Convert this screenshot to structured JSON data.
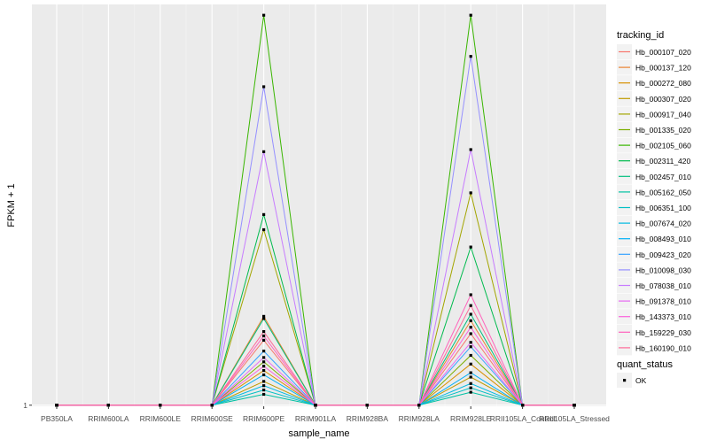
{
  "chart_data": {
    "type": "line",
    "xlabel": "sample_name",
    "ylabel": "FPKM + 1",
    "y_ticks": [
      "1"
    ],
    "categories": [
      "PB350LA",
      "RRIM600LA",
      "RRIM600LE",
      "RRIM600SE",
      "RRIM600PE",
      "RRIM901LA",
      "RRIM928BA",
      "RRIM928LA",
      "RRIM928LE",
      "RRII105LA_Control",
      "RRII105LA_Stressed"
    ],
    "x_tick_labels": [
      "PB350LA",
      "RRIM600LA",
      "RRIM600LE",
      "RRIM600SE",
      "RRIM600PE",
      "RRIM901LA",
      "RRIM928BA",
      "RRIM928LA",
      "RRIM928LE",
      "RRII105LA_Control",
      "RRII105LA_Stressed"
    ],
    "ylim": [
      0.95,
      19.5
    ],
    "grid": true,
    "legend_position": "right",
    "legend": {
      "title": "tracking_id",
      "items": [
        {
          "name": "Hb_000107_020",
          "color": "#F8766D"
        },
        {
          "name": "Hb_000137_120",
          "color": "#EA8331"
        },
        {
          "name": "Hb_000272_080",
          "color": "#D89000"
        },
        {
          "name": "Hb_000307_020",
          "color": "#C09B00"
        },
        {
          "name": "Hb_000917_040",
          "color": "#A3A500"
        },
        {
          "name": "Hb_001335_020",
          "color": "#7CAE00"
        },
        {
          "name": "Hb_002105_060",
          "color": "#39B600"
        },
        {
          "name": "Hb_002311_420",
          "color": "#00BB4E"
        },
        {
          "name": "Hb_002457_010",
          "color": "#00BF7D"
        },
        {
          "name": "Hb_005162_050",
          "color": "#00C1A3"
        },
        {
          "name": "Hb_006351_100",
          "color": "#00BFC4"
        },
        {
          "name": "Hb_007674_020",
          "color": "#00BAE0"
        },
        {
          "name": "Hb_008493_010",
          "color": "#00B0F6"
        },
        {
          "name": "Hb_009423_020",
          "color": "#35A2FF"
        },
        {
          "name": "Hb_010098_030",
          "color": "#9590FF"
        },
        {
          "name": "Hb_078038_010",
          "color": "#C77CFF"
        },
        {
          "name": "Hb_091378_010",
          "color": "#E76BF3"
        },
        {
          "name": "Hb_143373_010",
          "color": "#FA62DB"
        },
        {
          "name": "Hb_159229_030",
          "color": "#FF62BC"
        },
        {
          "name": "Hb_160190_010",
          "color": "#FF6A98"
        }
      ]
    },
    "shape_legend": {
      "title": "quant_status",
      "items": [
        "OK"
      ]
    },
    "series": [
      {
        "name": "Hb_000107_020",
        "values": [
          1,
          1,
          1,
          1,
          4.0,
          1,
          1,
          1,
          4.3,
          1,
          1
        ]
      },
      {
        "name": "Hb_000137_120",
        "values": [
          1,
          1,
          1,
          1,
          5.1,
          1,
          1,
          1,
          4.9,
          1,
          1
        ]
      },
      {
        "name": "Hb_000272_080",
        "values": [
          1,
          1,
          1,
          1,
          2.6,
          1,
          1,
          1,
          2.9,
          1,
          1
        ]
      },
      {
        "name": "Hb_000307_020",
        "values": [
          1,
          1,
          1,
          1,
          2.1,
          1,
          1,
          1,
          2.3,
          1,
          1
        ]
      },
      {
        "name": "Hb_000917_040",
        "values": [
          1,
          1,
          1,
          1,
          9.1,
          1,
          1,
          1,
          10.8,
          1,
          1
        ]
      },
      {
        "name": "Hb_001335_020",
        "values": [
          1,
          1,
          1,
          1,
          3.0,
          1,
          1,
          1,
          3.3,
          1,
          1
        ]
      },
      {
        "name": "Hb_002105_060",
        "values": [
          1,
          1,
          1,
          1,
          19.0,
          1,
          1,
          1,
          19.0,
          1,
          1
        ]
      },
      {
        "name": "Hb_002311_420",
        "values": [
          1,
          1,
          1,
          1,
          9.8,
          1,
          1,
          1,
          8.3,
          1,
          1
        ]
      },
      {
        "name": "Hb_002457_010",
        "values": [
          1,
          1,
          1,
          1,
          5.0,
          1,
          1,
          1,
          5.2,
          1,
          1
        ]
      },
      {
        "name": "Hb_005162_050",
        "values": [
          1,
          1,
          1,
          1,
          1.5,
          1,
          1,
          1,
          1.6,
          1,
          1
        ]
      },
      {
        "name": "Hb_006351_100",
        "values": [
          1,
          1,
          1,
          1,
          1.7,
          1,
          1,
          1,
          1.8,
          1,
          1
        ]
      },
      {
        "name": "Hb_007674_020",
        "values": [
          1,
          1,
          1,
          1,
          1.9,
          1,
          1,
          1,
          2.0,
          1,
          1
        ]
      },
      {
        "name": "Hb_008493_010",
        "values": [
          1,
          1,
          1,
          1,
          2.4,
          1,
          1,
          1,
          2.5,
          1,
          1
        ]
      },
      {
        "name": "Hb_009423_020",
        "values": [
          1,
          1,
          1,
          1,
          3.5,
          1,
          1,
          1,
          3.7,
          1,
          1
        ]
      },
      {
        "name": "Hb_010098_030",
        "values": [
          1,
          1,
          1,
          1,
          15.7,
          1,
          1,
          1,
          17.1,
          1,
          1
        ]
      },
      {
        "name": "Hb_078038_010",
        "values": [
          1,
          1,
          1,
          1,
          12.7,
          1,
          1,
          1,
          12.8,
          1,
          1
        ]
      },
      {
        "name": "Hb_091378_010",
        "values": [
          1,
          1,
          1,
          1,
          3.2,
          1,
          1,
          1,
          3.9,
          1,
          1
        ]
      },
      {
        "name": "Hb_143373_010",
        "values": [
          1,
          1,
          1,
          1,
          2.8,
          1,
          1,
          1,
          4.6,
          1,
          1
        ]
      },
      {
        "name": "Hb_159229_030",
        "values": [
          1,
          1,
          1,
          1,
          4.2,
          1,
          1,
          1,
          6.1,
          1,
          1
        ]
      },
      {
        "name": "Hb_160190_010",
        "values": [
          1,
          1,
          1,
          1,
          4.4,
          1,
          1,
          1,
          5.6,
          1,
          1
        ]
      }
    ]
  }
}
